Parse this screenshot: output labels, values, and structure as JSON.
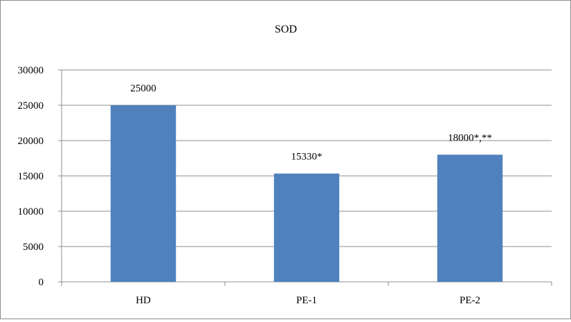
{
  "chart_data": {
    "type": "bar",
    "title": "SOD",
    "xlabel": "",
    "ylabel": "",
    "categories": [
      "HD",
      "PE-1",
      "PE-2"
    ],
    "values": [
      25000,
      15330,
      18000
    ],
    "data_labels": [
      "25000",
      "15330*",
      "18000*,**"
    ],
    "ylim": [
      0,
      30000
    ],
    "yticks": [
      0,
      5000,
      10000,
      15000,
      20000,
      25000,
      30000
    ],
    "grid": true,
    "legend": "none",
    "bar_color": "#4f81bd"
  }
}
